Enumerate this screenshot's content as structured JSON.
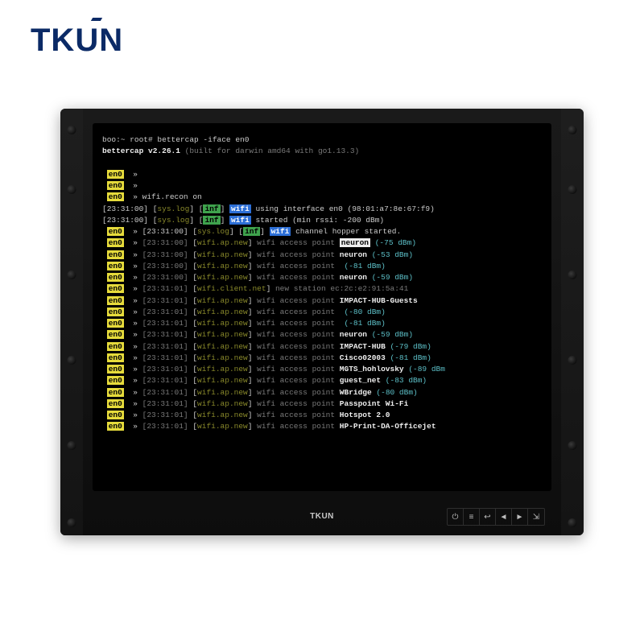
{
  "brand": {
    "logo_lead": "TK",
    "logo_accent": "U",
    "logo_tail": "N",
    "mini_brand": "TKUN"
  },
  "bezel": {
    "screw_offsets_percent": [
      4,
      18,
      38,
      58,
      78,
      96
    ],
    "buttons": [
      {
        "name": "power-icon",
        "glyph": "⏻"
      },
      {
        "name": "menu-icon",
        "glyph": "≡"
      },
      {
        "name": "back-icon",
        "glyph": "↩"
      },
      {
        "name": "left-icon",
        "glyph": "◄"
      },
      {
        "name": "right-icon",
        "glyph": "►"
      },
      {
        "name": "source-icon",
        "glyph": "⇲"
      }
    ]
  },
  "colors": {
    "en0_bg": "#e6db3b",
    "inf_bg": "#3fa34d",
    "wifi_bg": "#2d6fd6",
    "neuron_bg": "#eeeeee",
    "cyan": "#5dc1c9",
    "dim": "#7a7a7a"
  },
  "prompt": {
    "raw": "boo:~ root# bettercap -iface en0",
    "version_lead": "bettercap v2.26.1",
    "version_tail": " (built for darwin amd64 with go1.13.3)"
  },
  "en0": "en0",
  "inf": "inf",
  "wifi": "wifi",
  "arrow": "»",
  "recon_cmd": "wifi.recon on",
  "iface_line": " using interface en0 (98:01:a7:8e:67:f9)",
  "started_line": " started (min rssi: -200 dBm)",
  "hopper_line": " channel hopper started.",
  "syslog_tag": "sys.log",
  "apnew_tag": "wifi.ap.new",
  "client_tag": "wifi.client.net",
  "lines": [
    {
      "ts": "23:31:00",
      "tag": "wifi.ap.new",
      "tail": " wifi access point ",
      "hl": "neuron",
      "sig": " (-75 dBm)"
    },
    {
      "ts": "23:31:00",
      "tag": "wifi.ap.new",
      "tail": " wifi access point ",
      "ap": "neuron",
      "sig": " (-53 dBm)"
    },
    {
      "ts": "23:31:00",
      "tag": "wifi.ap.new",
      "tail": " wifi access point ",
      "ap": "<hidden>",
      "sig": " (-81 dBm)"
    },
    {
      "ts": "23:31:00",
      "tag": "wifi.ap.new",
      "tail": " wifi access point ",
      "ap": "neuron",
      "sig": " (-59 dBm)"
    },
    {
      "ts": "23:31:01",
      "tag": "wifi.client.net",
      "tail": " new station ec:2c:e2:91:5a:41"
    },
    {
      "ts": "23:31:01",
      "tag": "wifi.ap.new",
      "tail": " wifi access point ",
      "ap": "IMPACT-HUB-Guests"
    },
    {
      "ts": "23:31:01",
      "tag": "wifi.ap.new",
      "tail": " wifi access point ",
      "ap": "<hidden>",
      "sig": " (-80 dBm)"
    },
    {
      "ts": "23:31:01",
      "tag": "wifi.ap.new",
      "tail": " wifi access point ",
      "ap": "<hidden>",
      "sig": " (-81 dBm)"
    },
    {
      "ts": "23:31:01",
      "tag": "wifi.ap.new",
      "tail": " wifi access point ",
      "ap": "neuron",
      "sig": " (-59 dBm)"
    },
    {
      "ts": "23:31:01",
      "tag": "wifi.ap.new",
      "tail": " wifi access point ",
      "ap": "IMPACT-HUB",
      "sig": " (-79 dBm)"
    },
    {
      "ts": "23:31:01",
      "tag": "wifi.ap.new",
      "tail": " wifi access point ",
      "ap": "Cisco02003",
      "sig": " (-81 dBm)"
    },
    {
      "ts": "23:31:01",
      "tag": "wifi.ap.new",
      "tail": " wifi access point ",
      "ap": "MGTS_hohlovsky",
      "sig": " (-89 dBm"
    },
    {
      "ts": "23:31:01",
      "tag": "wifi.ap.new",
      "tail": " wifi access point ",
      "ap": "guest_net",
      "sig": " (-83 dBm)"
    },
    {
      "ts": "23:31:01",
      "tag": "wifi.ap.new",
      "tail": " wifi access point ",
      "ap": "WBridge",
      "sig": " (-80 dBm)"
    },
    {
      "ts": "23:31:01",
      "tag": "wifi.ap.new",
      "tail": " wifi access point ",
      "ap": "Passpoint Wi-Fi"
    },
    {
      "ts": "23:31:01",
      "tag": "wifi.ap.new",
      "tail": " wifi access point ",
      "ap": "Hotspot 2.0"
    },
    {
      "ts": "23:31:01",
      "tag": "wifi.ap.new",
      "tail": " wifi access point ",
      "ap": "HP-Print-DA-Officejet"
    }
  ]
}
